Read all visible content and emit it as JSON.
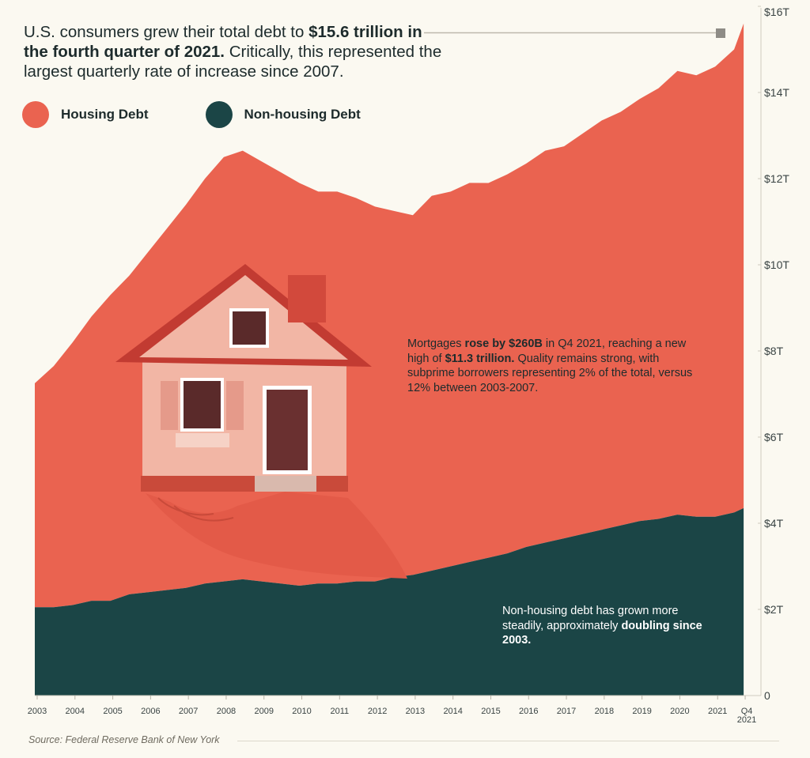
{
  "headline": {
    "part1": "U.S. consumers grew their total debt to ",
    "bold1": "$15.6 trillion in the fourth quarter of 2021.",
    "part2": " Critically, this represented the largest quarterly rate of increase since 2007."
  },
  "legend": [
    {
      "label": "Housing Debt",
      "color": "#ea6350"
    },
    {
      "label": "Non-housing Debt",
      "color": "#1b4546"
    }
  ],
  "annotations": {
    "housing": {
      "t1": "Mortgages ",
      "b1": "rose by $260B",
      "t2": " in Q4 2021, reaching a new high of ",
      "b2": "$11.3 trillion.",
      "t3": " Quality remains strong, with subprime borrowers representing 2% of the total, versus 12% between 2003-2007."
    },
    "nonhousing": {
      "t1": "Non-housing debt has grown more steadily, approximately ",
      "b1": "doubling since 2003."
    }
  },
  "source": "Source: Federal Reserve Bank of New York",
  "chart_data": {
    "type": "area",
    "stacked": true,
    "x_tick_labels": [
      "2003",
      "2004",
      "2005",
      "2006",
      "2007",
      "2008",
      "2009",
      "2010",
      "2011",
      "2012",
      "2013",
      "2014",
      "2015",
      "2016",
      "2017",
      "2018",
      "2019",
      "2020",
      "2021"
    ],
    "x_end_label": [
      "Q4",
      "2021"
    ],
    "y_tick_labels": [
      "0",
      "$2T",
      "$4T",
      "$6T",
      "$8T",
      "$10T",
      "$12T",
      "$14T",
      "$16T"
    ],
    "y_ticks": [
      0,
      2,
      4,
      6,
      8,
      10,
      12,
      14,
      16
    ],
    "ylim": [
      0,
      16
    ],
    "xlim": [
      2003.0,
      2022.0
    ],
    "grid": false,
    "legend_position": "top-left",
    "series": [
      {
        "name": "Non-housing Debt",
        "color": "#1b4546",
        "x": [
          2003.0,
          2003.5,
          2004.0,
          2004.5,
          2005.0,
          2005.5,
          2006.0,
          2006.5,
          2007.0,
          2007.5,
          2008.0,
          2008.5,
          2009.0,
          2009.5,
          2010.0,
          2010.5,
          2011.0,
          2011.5,
          2012.0,
          2012.5,
          2013.0,
          2013.5,
          2014.0,
          2014.5,
          2015.0,
          2015.5,
          2016.0,
          2016.5,
          2017.0,
          2017.5,
          2018.0,
          2018.5,
          2019.0,
          2019.5,
          2020.0,
          2020.5,
          2021.0,
          2021.5,
          2021.75
        ],
        "values": [
          2.05,
          2.05,
          2.1,
          2.2,
          2.2,
          2.35,
          2.4,
          2.45,
          2.5,
          2.6,
          2.65,
          2.7,
          2.65,
          2.6,
          2.55,
          2.6,
          2.6,
          2.65,
          2.65,
          2.75,
          2.8,
          2.9,
          3.0,
          3.1,
          3.2,
          3.3,
          3.45,
          3.55,
          3.65,
          3.75,
          3.85,
          3.95,
          4.05,
          4.1,
          4.2,
          4.15,
          4.15,
          4.25,
          4.35
        ]
      },
      {
        "name": "Housing Debt",
        "color": "#ea6350",
        "x": [
          2003.0,
          2003.5,
          2004.0,
          2004.5,
          2005.0,
          2005.5,
          2006.0,
          2006.5,
          2007.0,
          2007.5,
          2008.0,
          2008.5,
          2009.0,
          2009.5,
          2010.0,
          2010.5,
          2011.0,
          2011.5,
          2012.0,
          2012.5,
          2013.0,
          2013.5,
          2014.0,
          2014.5,
          2015.0,
          2015.5,
          2016.0,
          2016.5,
          2017.0,
          2017.5,
          2018.0,
          2018.5,
          2019.0,
          2019.5,
          2020.0,
          2020.5,
          2021.0,
          2021.5,
          2021.75
        ],
        "values": [
          5.2,
          5.6,
          6.1,
          6.6,
          7.1,
          7.4,
          7.9,
          8.4,
          8.9,
          9.4,
          9.85,
          9.95,
          9.75,
          9.55,
          9.35,
          9.1,
          9.1,
          8.9,
          8.7,
          8.5,
          8.35,
          8.7,
          8.7,
          8.8,
          8.7,
          8.8,
          8.9,
          9.1,
          9.1,
          9.3,
          9.5,
          9.6,
          9.8,
          10.0,
          10.3,
          10.25,
          10.45,
          10.75,
          11.25
        ]
      }
    ],
    "totals_note_end_value": 15.6
  }
}
